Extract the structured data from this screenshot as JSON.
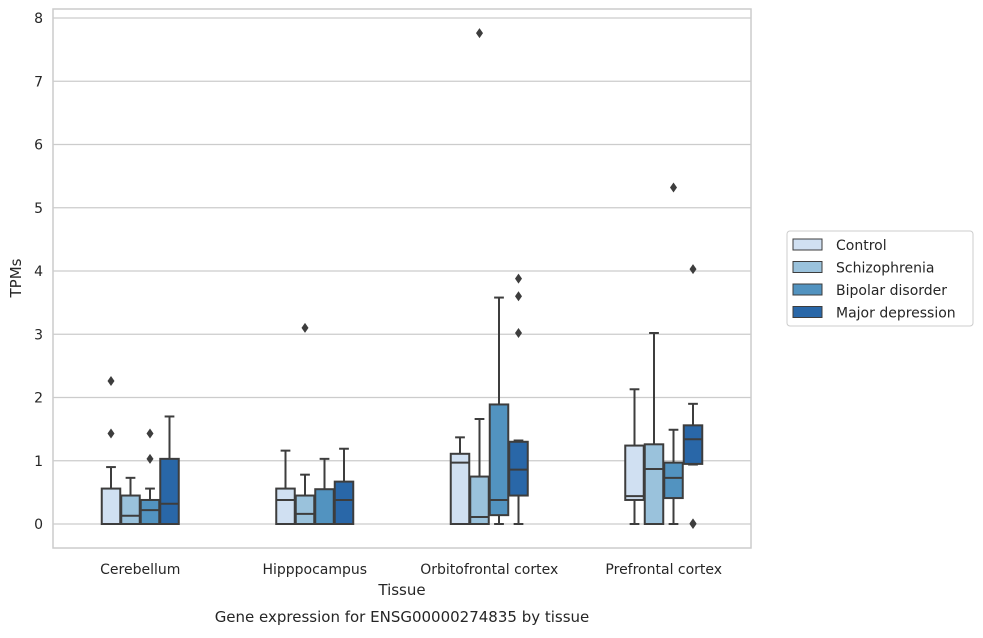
{
  "chart_data": {
    "type": "box",
    "title": "",
    "caption": "Gene expression for ENSG00000274835 by tissue",
    "xlabel": "Tissue",
    "ylabel": "TPMs",
    "ylim": [
      -0.38,
      8.15
    ],
    "yticks": [
      0,
      1,
      2,
      3,
      4,
      5,
      6,
      7,
      8
    ],
    "grid": true,
    "legend_position": "right",
    "categories": [
      "Cerebellum",
      "Hipppocampus",
      "Orbitofrontal cortex",
      "Prefrontal cortex"
    ],
    "series": [
      {
        "name": "Control",
        "color": "#d0e0f2",
        "boxes": [
          {
            "whislo": 0,
            "q1": 0,
            "med": 0,
            "q3": 0.56,
            "whishi": 0.9,
            "fliers": [
              1.43,
              2.26
            ]
          },
          {
            "whislo": 0,
            "q1": 0,
            "med": 0.38,
            "q3": 0.56,
            "whishi": 1.16,
            "fliers": []
          },
          {
            "whislo": 0,
            "q1": 0,
            "med": 0.97,
            "q3": 1.11,
            "whishi": 1.37,
            "fliers": []
          },
          {
            "whislo": 0,
            "q1": 0.38,
            "med": 0.44,
            "q3": 1.24,
            "whishi": 2.13,
            "fliers": []
          }
        ]
      },
      {
        "name": "Schizophrenia",
        "color": "#9ac2dc",
        "boxes": [
          {
            "whislo": 0,
            "q1": 0,
            "med": 0.13,
            "q3": 0.45,
            "whishi": 0.73,
            "fliers": []
          },
          {
            "whislo": 0,
            "q1": 0,
            "med": 0.16,
            "q3": 0.45,
            "whishi": 0.78,
            "fliers": [
              3.1
            ]
          },
          {
            "whislo": 0,
            "q1": 0,
            "med": 0.11,
            "q3": 0.75,
            "whishi": 1.66,
            "fliers": [
              7.76
            ]
          },
          {
            "whislo": 0,
            "q1": 0,
            "med": 0.87,
            "q3": 1.26,
            "whishi": 3.02,
            "fliers": []
          }
        ]
      },
      {
        "name": "Bipolar disorder",
        "color": "#5293c0",
        "boxes": [
          {
            "whislo": 0,
            "q1": 0,
            "med": 0.22,
            "q3": 0.38,
            "whishi": 0.56,
            "fliers": [
              1.03,
              1.43
            ]
          },
          {
            "whislo": 0,
            "q1": 0,
            "med": 0,
            "q3": 0.55,
            "whishi": 1.03,
            "fliers": []
          },
          {
            "whislo": 0,
            "q1": 0.14,
            "med": 0.38,
            "q3": 1.89,
            "whishi": 3.58,
            "fliers": []
          },
          {
            "whislo": 0,
            "q1": 0.41,
            "med": 0.73,
            "q3": 0.97,
            "whishi": 1.49,
            "fliers": [
              5.32
            ]
          }
        ]
      },
      {
        "name": "Major depression",
        "color": "#2967a8",
        "boxes": [
          {
            "whislo": 0,
            "q1": 0,
            "med": 0.32,
            "q3": 1.03,
            "whishi": 1.7,
            "fliers": []
          },
          {
            "whislo": 0,
            "q1": 0,
            "med": 0.38,
            "q3": 0.67,
            "whishi": 1.19,
            "fliers": []
          },
          {
            "whislo": 0,
            "q1": 0.45,
            "med": 0.86,
            "q3": 1.3,
            "whishi": 1.32,
            "fliers": [
              3.02,
              3.6,
              3.88
            ]
          },
          {
            "whislo": 0.94,
            "q1": 0.95,
            "med": 1.34,
            "q3": 1.56,
            "whishi": 1.9,
            "fliers": [
              0,
              0.01,
              4.03
            ]
          }
        ]
      }
    ]
  }
}
